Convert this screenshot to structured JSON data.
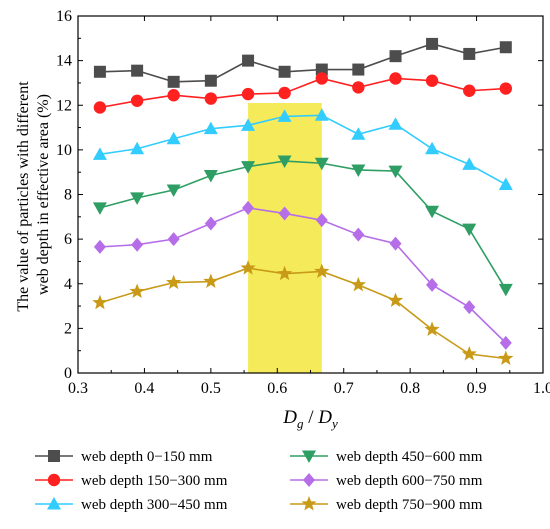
{
  "chart_data": {
    "type": "line",
    "xlabel_main": "D",
    "xlabel_sub1": "g",
    "xlabel_sep": " / ",
    "xlabel_main2": "D",
    "xlabel_sub2": "y",
    "ylabel_line1": "The value of particles with different",
    "ylabel_line2": "web depth in effective area (%)",
    "xlim": [
      0.3,
      1.0
    ],
    "ylim": [
      0,
      16
    ],
    "xticks": [
      "0.3",
      "0.4",
      "0.5",
      "0.6",
      "0.7",
      "0.8",
      "0.9",
      "1.0"
    ],
    "yticks": [
      "0",
      "2",
      "4",
      "6",
      "8",
      "10",
      "12",
      "14",
      "16"
    ],
    "highlight": {
      "x_from": 0.556,
      "x_to": 0.667,
      "y_from": 0,
      "y_to": 12.1,
      "color": "#f5ea5a"
    },
    "x": [
      0.333,
      0.389,
      0.444,
      0.5,
      0.556,
      0.611,
      0.667,
      0.722,
      0.778,
      0.833,
      0.889,
      0.944
    ],
    "series": [
      {
        "name": "web depth 0−150 mm",
        "color": "#4d4d4d",
        "marker": "square",
        "values": [
          13.5,
          13.55,
          13.05,
          13.1,
          14.0,
          13.5,
          13.6,
          13.6,
          14.2,
          14.75,
          14.3,
          14.6
        ]
      },
      {
        "name": "web depth 150−300 mm",
        "color": "#ff2020",
        "marker": "circle",
        "values": [
          11.9,
          12.2,
          12.45,
          12.3,
          12.5,
          12.55,
          13.2,
          12.8,
          13.2,
          13.1,
          12.65,
          12.75
        ]
      },
      {
        "name": "web depth 300−450 mm",
        "color": "#33ccff",
        "marker": "triangle-up",
        "values": [
          9.8,
          10.05,
          10.5,
          10.95,
          11.1,
          11.5,
          11.55,
          10.7,
          11.15,
          10.05,
          9.35,
          8.45
        ]
      },
      {
        "name": "web depth 450−600 mm",
        "color": "#2e9e64",
        "marker": "triangle-down",
        "values": [
          7.4,
          7.85,
          8.2,
          8.85,
          9.25,
          9.5,
          9.4,
          9.1,
          9.05,
          7.25,
          6.45,
          3.75
        ]
      },
      {
        "name": "web depth 600−750 mm",
        "color": "#b66ee8",
        "marker": "diamond",
        "values": [
          5.65,
          5.75,
          6.0,
          6.7,
          7.4,
          7.15,
          6.85,
          6.2,
          5.8,
          3.95,
          2.95,
          1.35
        ]
      },
      {
        "name": "web depth 750−900 mm",
        "color": "#c89a17",
        "marker": "star",
        "values": [
          3.15,
          3.65,
          4.05,
          4.1,
          4.7,
          4.45,
          4.55,
          3.95,
          3.25,
          1.95,
          0.85,
          0.65
        ]
      }
    ]
  }
}
